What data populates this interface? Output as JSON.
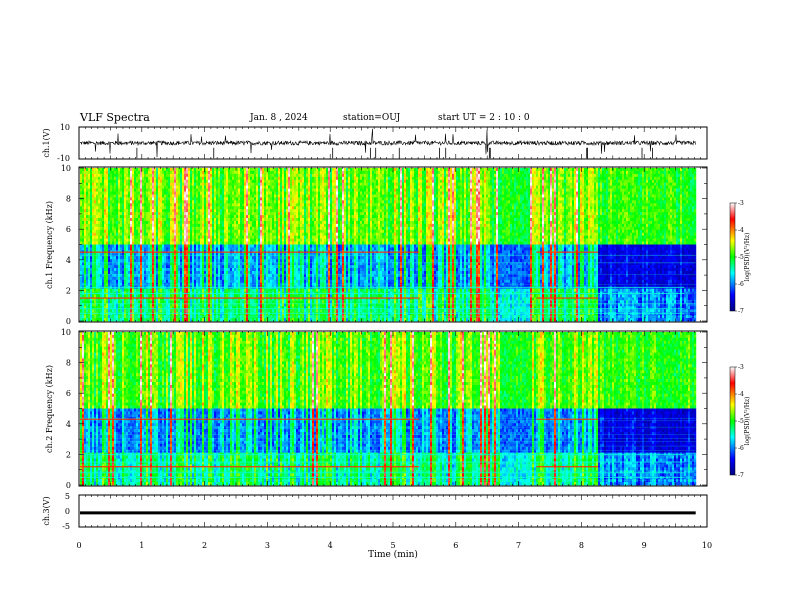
{
  "header": {
    "title": "VLF Spectra",
    "date": "Jan. 8 , 2024",
    "station": "station=OUJ",
    "start": "start UT = 2 : 10 : 0"
  },
  "colors": {
    "spectrogram_map": [
      "#00007f",
      "#0000ff",
      "#00ffff",
      "#00ff00",
      "#ffff00",
      "#ff0000",
      "#ffffff"
    ],
    "waveform": "#000000",
    "axes": "#000000"
  },
  "chart_data": [
    {
      "type": "line",
      "id": "ch1-waveform",
      "ylabel": "ch.1(V)",
      "xlim": [
        0,
        10
      ],
      "ylim": [
        -10,
        10
      ],
      "y_ticks": [
        "10",
        "-10"
      ],
      "x_end": 9.82,
      "description_series": "noisy waveform centred near 0 V with sparse spikes"
    },
    {
      "type": "heatmap",
      "id": "ch1-spectrogram",
      "ylabel": "ch.1 Frequency (kHz)",
      "xlim": [
        0,
        10
      ],
      "ylim": [
        0,
        10
      ],
      "y_ticks": [
        "0",
        "2",
        "4",
        "6",
        "8",
        "10"
      ],
      "x_end": 9.82,
      "bands_khz": [
        0.5,
        0.8,
        1.5,
        1.8,
        2.2,
        4.5
      ],
      "colorbar": {
        "label": "log(PSD)(V²/Hz)",
        "range": [
          -7,
          -3
        ],
        "ticks": [
          "-3",
          "-4",
          "-5",
          "-6",
          "-7"
        ]
      }
    },
    {
      "type": "heatmap",
      "id": "ch2-spectrogram",
      "ylabel": "ch.2 Frequency (kHz)",
      "xlim": [
        0,
        10
      ],
      "ylim": [
        0,
        10
      ],
      "y_ticks": [
        "0",
        "2",
        "4",
        "6",
        "8",
        "10"
      ],
      "x_end": 9.82,
      "bands_khz": [
        0.5,
        0.8,
        1.2,
        1.5,
        2.0,
        4.3
      ],
      "colorbar": {
        "label": "log(PSD)(V²/Hz)",
        "range": [
          -7,
          -3
        ],
        "ticks": [
          "-3",
          "-4",
          "-5",
          "-6",
          "-7"
        ]
      }
    },
    {
      "type": "line",
      "id": "ch3-waveform",
      "ylabel": "ch.3(V)",
      "xlim": [
        0,
        10
      ],
      "ylim": [
        -5,
        5
      ],
      "y_ticks": [
        "5",
        "0",
        "-5"
      ],
      "x_end": 9.82,
      "level": -0.6
    }
  ],
  "x_axis": {
    "label": "Time (min)",
    "ticks": [
      "0",
      "1",
      "2",
      "3",
      "4",
      "5",
      "6",
      "7",
      "8",
      "9",
      "10"
    ]
  }
}
